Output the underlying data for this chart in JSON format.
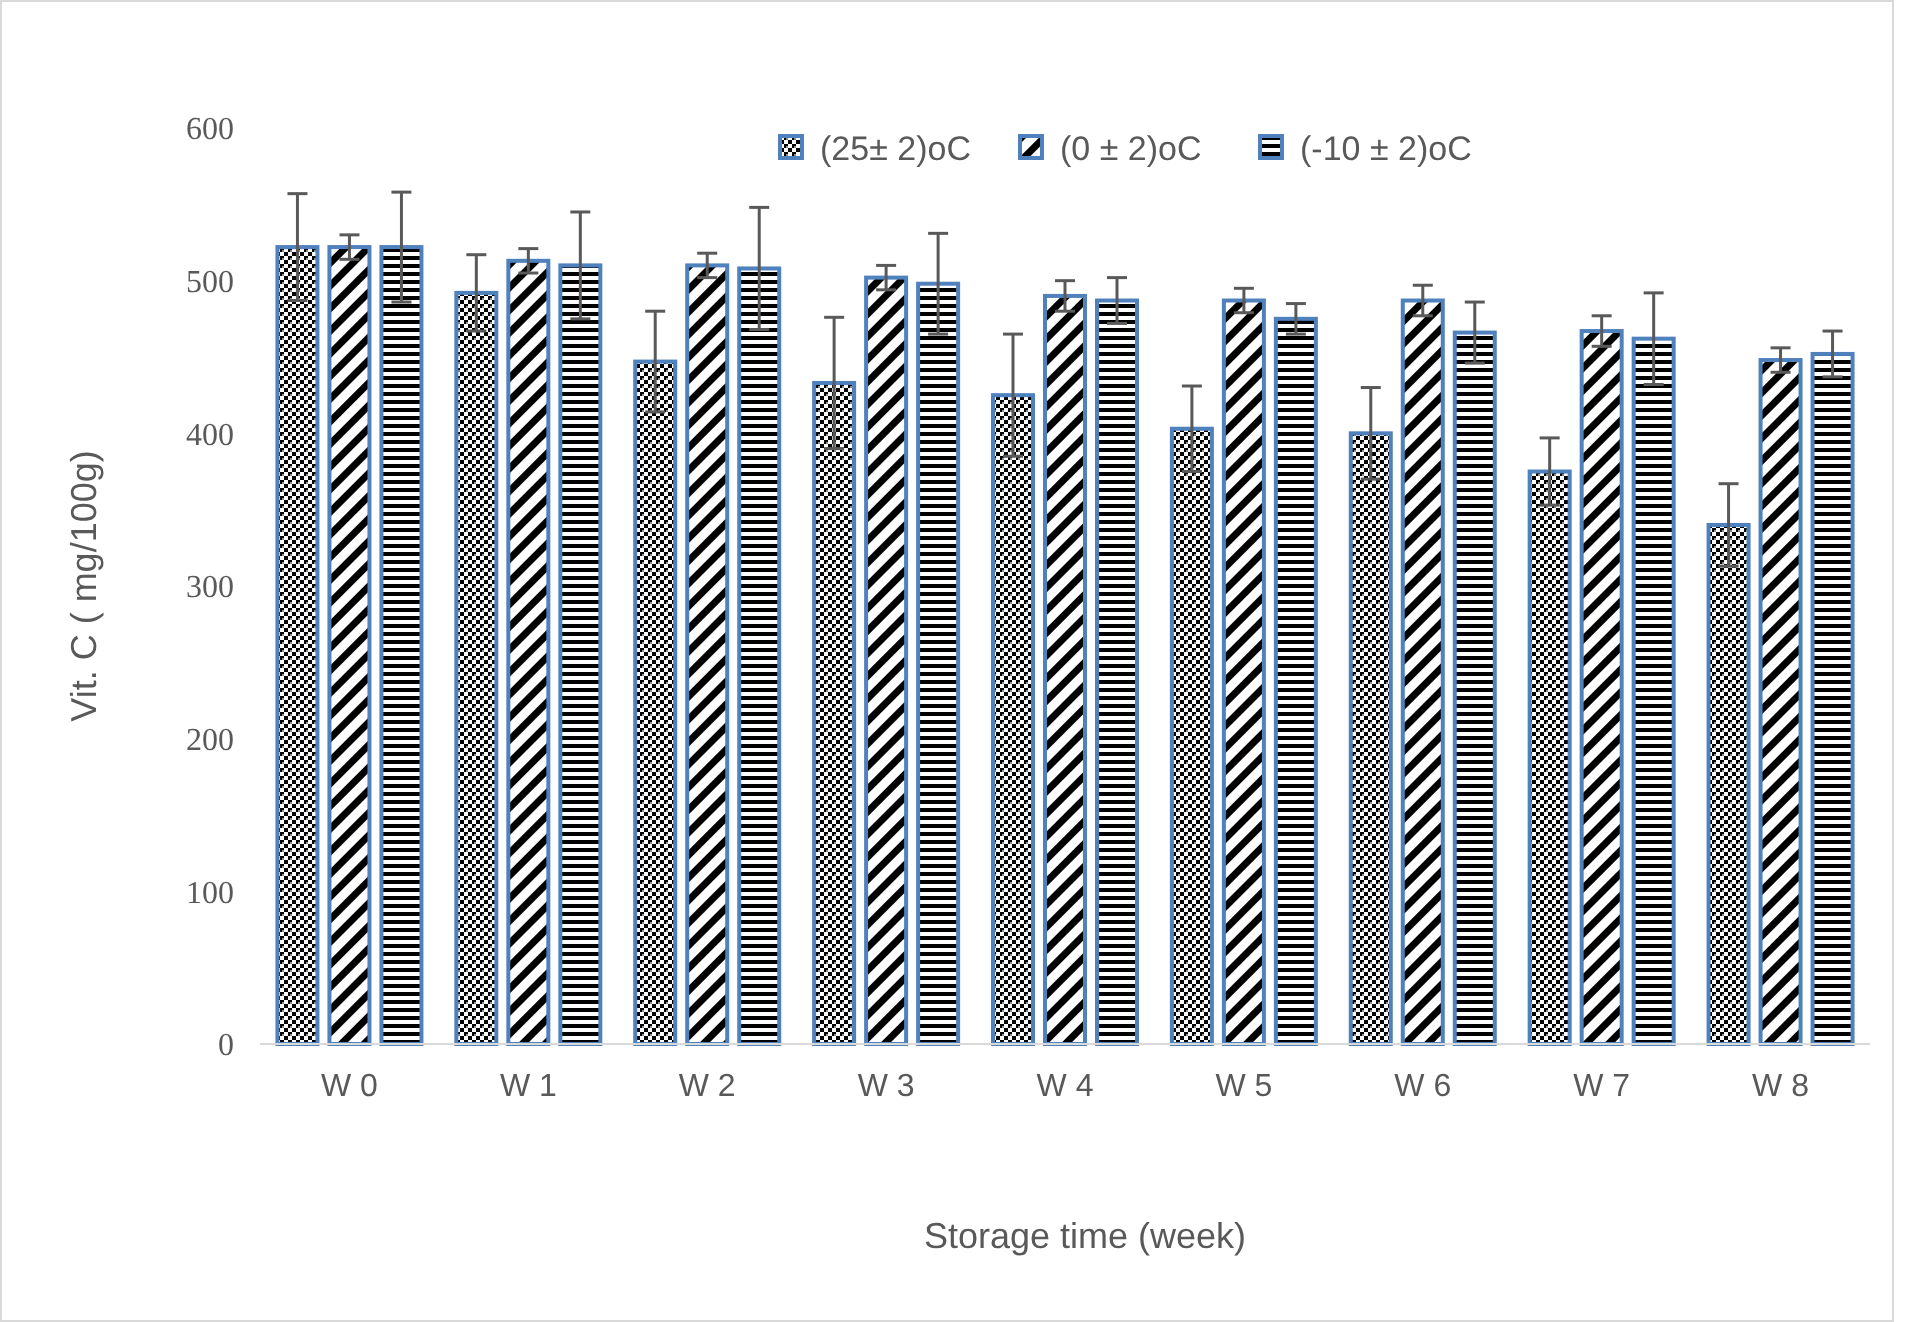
{
  "chart_data": {
    "type": "bar",
    "xlabel": "Storage time (week)",
    "ylabel": "Vit. C ( mg/100g)",
    "categories": [
      "W 0",
      "W 1",
      "W 2",
      "W 3",
      "W 4",
      "W 5",
      "W 6",
      "W 7",
      "W 8"
    ],
    "ylim": [
      0,
      600
    ],
    "yticks": [
      0,
      100,
      200,
      300,
      400,
      500,
      600
    ],
    "grid": false,
    "legend": "top right",
    "series": [
      {
        "name": "(25± 2)oC",
        "color": "#4f81bd",
        "values": [
          522,
          492,
          447,
          433,
          425,
          403,
          400,
          375,
          340
        ],
        "errors": [
          35,
          25,
          33,
          43,
          40,
          28,
          30,
          22,
          27
        ]
      },
      {
        "name": "(0 ± 2)oC",
        "color": "#4f81bd",
        "values": [
          522,
          513,
          510,
          502,
          490,
          487,
          487,
          467,
          448
        ],
        "errors": [
          8,
          8,
          8,
          8,
          10,
          8,
          10,
          10,
          8
        ]
      },
      {
        "name": "(-10 ± 2)oC",
        "color": "#4f81bd",
        "values": [
          522,
          510,
          508,
          498,
          487,
          475,
          466,
          462,
          452
        ],
        "errors": [
          36,
          35,
          40,
          33,
          15,
          10,
          20,
          30,
          15
        ]
      }
    ]
  }
}
